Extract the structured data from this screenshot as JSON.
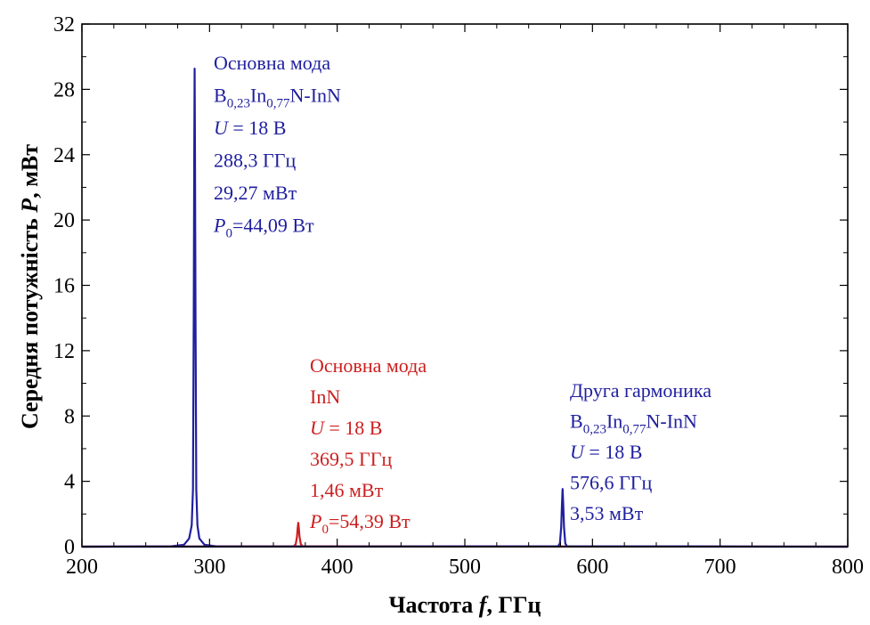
{
  "chart_data": {
    "type": "line",
    "title": "",
    "xlabel": {
      "prefix": "Частота ",
      "var": "f",
      "suffix": ", ГГц"
    },
    "ylabel": {
      "prefix": "Середня потужність ",
      "var": "P",
      "suffix": ", мВт"
    },
    "xlim": [
      200,
      800
    ],
    "ylim": [
      0,
      32
    ],
    "x_ticks": [
      200,
      300,
      400,
      500,
      600,
      700,
      800
    ],
    "x_tick_labels": [
      "200",
      "300",
      "400",
      "500",
      "600",
      "700",
      "800"
    ],
    "y_ticks": [
      0,
      4,
      8,
      12,
      16,
      20,
      24,
      28,
      32
    ],
    "y_tick_labels": [
      "0",
      "4",
      "8",
      "12",
      "16",
      "20",
      "24",
      "28",
      "32"
    ],
    "grid": false,
    "legend": "none",
    "series": [
      {
        "color": "#1f1f9f",
        "x": [
          200,
          270,
          280,
          284,
          286,
          287,
          287.6,
          288,
          288.3,
          288.6,
          289,
          289.6,
          290.5,
          292,
          296,
          305,
          800
        ],
        "y": [
          0,
          0.02,
          0.12,
          0.5,
          1.3,
          3.5,
          14,
          24,
          29.27,
          24,
          14,
          3.5,
          1.3,
          0.5,
          0.12,
          0.02,
          0
        ]
      },
      {
        "color": "#cc1f1f",
        "x": [
          200,
          366,
          367.5,
          368.5,
          369,
          369.5,
          370,
          370.5,
          371.5,
          373,
          800
        ],
        "y": [
          0,
          0.02,
          0.15,
          0.6,
          1.1,
          1.46,
          1.1,
          0.6,
          0.15,
          0.02,
          0
        ]
      },
      {
        "color": "#1f1f9f",
        "x": [
          200,
          573,
          574.5,
          575.5,
          576.1,
          576.6,
          577.1,
          577.7,
          578.7,
          580,
          800
        ],
        "y": [
          0,
          0.02,
          0.2,
          1.2,
          2.6,
          3.53,
          2.6,
          1.2,
          0.2,
          0.02,
          0
        ]
      }
    ],
    "annotations": [
      {
        "name": "fundamental-bin",
        "color": "#1f1f9f",
        "lines": [
          {
            "segs": [
              {
                "t": "Основна мода"
              }
            ]
          },
          {
            "segs": [
              {
                "t": "B"
              },
              {
                "t": "0,23",
                "sub": true
              },
              {
                "t": "In"
              },
              {
                "t": "0,77",
                "sub": true
              },
              {
                "t": "N-InN"
              }
            ]
          },
          {
            "segs": [
              {
                "t": "U",
                "i": true
              },
              {
                "t": " = 18 В"
              }
            ]
          },
          {
            "segs": [
              {
                "t": "288,3 ГГц"
              }
            ]
          },
          {
            "segs": [
              {
                "t": "29,27 мВт"
              }
            ]
          },
          {
            "segs": [
              {
                "t": "P",
                "i": true
              },
              {
                "t": "0",
                "sub": true
              },
              {
                "t": "=44,09 Вт"
              }
            ]
          }
        ]
      },
      {
        "name": "fundamental-inn",
        "color": "#cc1f1f",
        "lines": [
          {
            "segs": [
              {
                "t": "Основна мода"
              }
            ]
          },
          {
            "segs": [
              {
                "t": "InN"
              }
            ]
          },
          {
            "segs": [
              {
                "t": "U",
                "i": true
              },
              {
                "t": " = 18 В"
              }
            ]
          },
          {
            "segs": [
              {
                "t": "369,5 ГГц"
              }
            ]
          },
          {
            "segs": [
              {
                "t": "1,46 мВт"
              }
            ]
          },
          {
            "segs": [
              {
                "t": "P",
                "i": true
              },
              {
                "t": "0",
                "sub": true
              },
              {
                "t": "=54,39 Вт"
              }
            ]
          }
        ]
      },
      {
        "name": "second-harmonic-bin",
        "color": "#1f1f9f",
        "lines": [
          {
            "segs": [
              {
                "t": "Друга гармоника"
              }
            ]
          },
          {
            "segs": [
              {
                "t": "B"
              },
              {
                "t": "0,23",
                "sub": true
              },
              {
                "t": "In"
              },
              {
                "t": "0,77",
                "sub": true
              },
              {
                "t": "N-InN"
              }
            ]
          },
          {
            "segs": [
              {
                "t": "U",
                "i": true
              },
              {
                "t": " = 18 В"
              }
            ]
          },
          {
            "segs": [
              {
                "t": "576,6 ГГц"
              }
            ]
          },
          {
            "segs": [
              {
                "t": "3,53 мВт"
              }
            ]
          }
        ]
      }
    ]
  }
}
